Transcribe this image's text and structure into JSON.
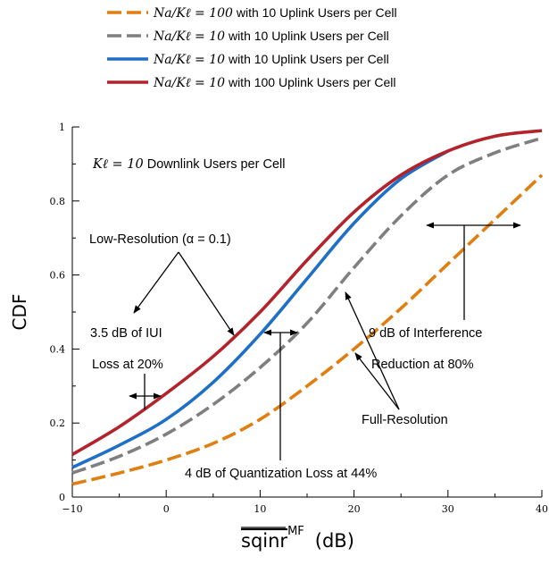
{
  "chart_data": {
    "type": "line",
    "xlabel": "sqinr",
    "xlabel_superscript": "MF",
    "xlabel_unit": "(dB)",
    "ylabel": "CDF",
    "xlim": [
      -10,
      40
    ],
    "ylim": [
      0,
      1
    ],
    "xticks": [
      -10,
      0,
      10,
      20,
      30,
      40
    ],
    "yticks": [
      0,
      0.2,
      0.4,
      0.6,
      0.8,
      1
    ],
    "xtick_labels": [
      "−10",
      "0",
      "10",
      "20",
      "30",
      "40"
    ],
    "ytick_labels": [
      "0",
      "0.2",
      "0.4",
      "0.6",
      "0.8",
      "1"
    ],
    "grid": false,
    "legend_position": "top",
    "series": [
      {
        "name": "N_a/K_ℓ = 100 with 10 Uplink Users per Cell",
        "legend_math": "Na/Kℓ = 100",
        "legend_text": " with 10 Uplink Users per Cell",
        "color": "#E07E10",
        "dashed": true,
        "x": [
          -10,
          -5,
          0,
          5,
          10,
          15,
          20,
          25,
          30,
          35,
          40
        ],
        "y": [
          0.035,
          0.065,
          0.1,
          0.145,
          0.21,
          0.3,
          0.4,
          0.51,
          0.63,
          0.75,
          0.87
        ]
      },
      {
        "name": "N_a/K_ℓ = 10 with 10 Uplink Users per Cell",
        "legend_math": "Na/Kℓ = 10",
        "legend_text": " with 10 Uplink Users per Cell",
        "color": "#7F7F7F",
        "dashed": true,
        "x": [
          -10,
          -5,
          0,
          5,
          10,
          15,
          20,
          25,
          30,
          35,
          40
        ],
        "y": [
          0.065,
          0.11,
          0.17,
          0.25,
          0.35,
          0.47,
          0.62,
          0.76,
          0.87,
          0.93,
          0.97
        ]
      },
      {
        "name": "N_a/K_ℓ = 10 with 10 Uplink Users per Cell",
        "legend_math": "Na/Kℓ = 10",
        "legend_text": " with 10 Uplink Users per Cell",
        "color": "#1F6FC6",
        "dashed": false,
        "x": [
          -10,
          -5,
          0,
          5,
          10,
          15,
          20,
          25,
          30
        ],
        "y": [
          0.08,
          0.14,
          0.21,
          0.31,
          0.44,
          0.59,
          0.74,
          0.86,
          0.935
        ]
      },
      {
        "name": "N_a/K_ℓ = 10 with 100 Uplink Users per Cell",
        "legend_math": "Na/Kℓ = 10",
        "legend_text": " with 100 Uplink Users per Cell",
        "color": "#B2232C",
        "dashed": false,
        "x": [
          -10,
          -5,
          0,
          5,
          10,
          15,
          20,
          25,
          30,
          35,
          40
        ],
        "y": [
          0.115,
          0.19,
          0.28,
          0.38,
          0.5,
          0.64,
          0.77,
          0.87,
          0.935,
          0.975,
          0.99
        ]
      }
    ],
    "annotations": [
      {
        "id": "downlink",
        "math": "Kℓ = 10",
        "text": " Downlink Users per Cell"
      },
      {
        "id": "lowres",
        "text": "Low-Resolution (α = 0.1)"
      },
      {
        "id": "iui1",
        "text": "3.5 dB of IUI"
      },
      {
        "id": "iui2",
        "text": "Loss at 20%"
      },
      {
        "id": "interf1",
        "text": "9 dB of Interference"
      },
      {
        "id": "interf2",
        "text": "Reduction at 80%"
      },
      {
        "id": "fullres",
        "text": "Full-Resolution"
      },
      {
        "id": "quant",
        "text": "4 dB of Quantization Loss at 44%"
      }
    ]
  }
}
